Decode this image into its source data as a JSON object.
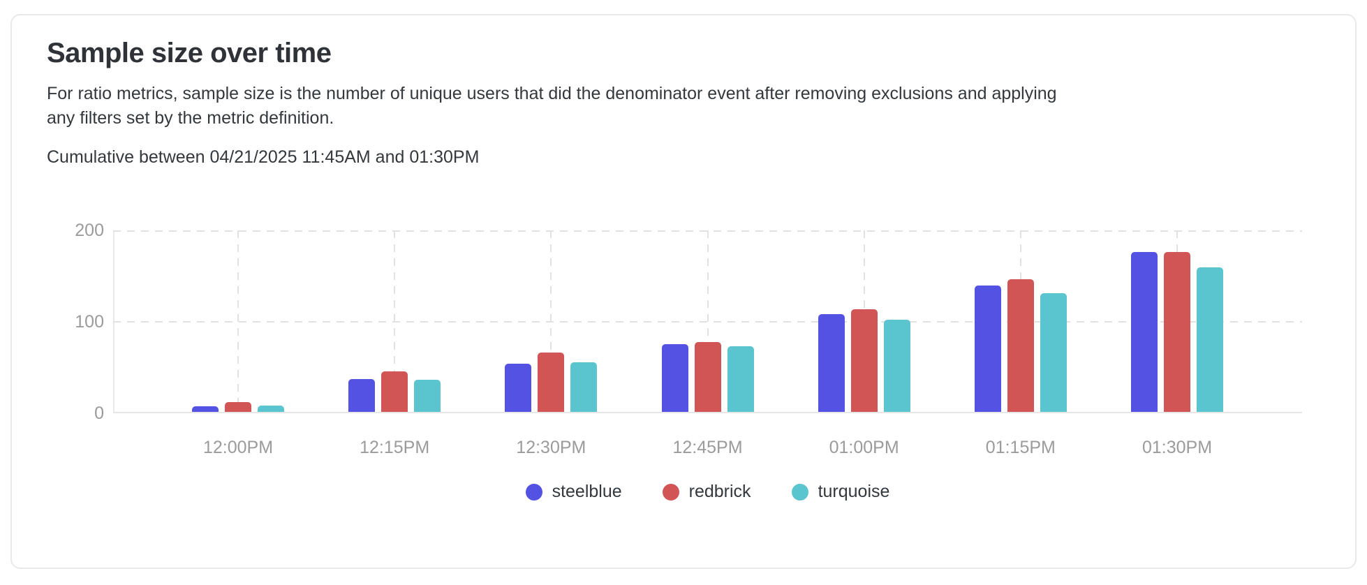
{
  "card": {
    "title": "Sample size over time",
    "description": "For ratio metrics, sample size is the number of unique users that did the denominator event after removing exclusions and applying any filters set by the metric definition.",
    "subtitle": "Cumulative between 04/21/2025 11:45AM and 01:30PM"
  },
  "chart_data": {
    "type": "bar",
    "title": "Sample size over time",
    "xlabel": "",
    "ylabel": "",
    "categories": [
      "12:00PM",
      "12:15PM",
      "12:30PM",
      "12:45PM",
      "01:00PM",
      "01:15PM",
      "01:30PM"
    ],
    "series": [
      {
        "name": "steelblue",
        "color": "#5352e3",
        "values": [
          6,
          36,
          53,
          74,
          107,
          138,
          175
        ]
      },
      {
        "name": "redbrick",
        "color": "#d25555",
        "values": [
          11,
          44,
          65,
          76,
          112,
          145,
          175
        ]
      },
      {
        "name": "turquoise",
        "color": "#5bc5cf",
        "values": [
          7,
          35,
          54,
          72,
          101,
          130,
          158
        ]
      }
    ],
    "ylim": [
      0,
      200
    ],
    "yticks": [
      0,
      100,
      200
    ],
    "grid": true,
    "gridline_color": "#e1e1e1",
    "axis_tick_color": "#9b9b9b",
    "legend_position": "bottom"
  }
}
